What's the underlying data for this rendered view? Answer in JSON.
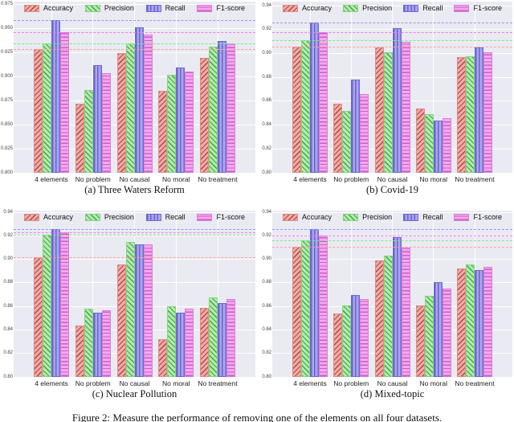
{
  "figure": {
    "caption": "Figure 2: Measure the performance of removing one of the elements on all four datasets.",
    "legend": [
      "Accuracy",
      "Precision",
      "Recall",
      "F1-score"
    ],
    "palette": {
      "accuracy_fill": "#f7a8a2",
      "precision_fill": "#abf0a7",
      "recall_fill": "#aaa6ef",
      "f1_fill": "#f3a9ef",
      "accuracy_dash": "#fc9f9b",
      "precision_dash": "#7ee87e",
      "recall_dash": "#9793f2",
      "f1_dash": "#ee7fe9",
      "plot_background": "#eaeaf2",
      "gridline": "#ffffff"
    }
  },
  "chart_data": [
    {
      "id": "a",
      "type": "bar",
      "title": "(a) Three Waters Reform",
      "categories": [
        "4 elements",
        "No problem",
        "No causal",
        "No moral",
        "No treatment"
      ],
      "series": [
        {
          "name": "Accuracy",
          "values": [
            0.928,
            0.872,
            0.924,
            0.885,
            0.919
          ]
        },
        {
          "name": "Precision",
          "values": [
            0.934,
            0.886,
            0.934,
            0.902,
            0.931
          ]
        },
        {
          "name": "Recall",
          "values": [
            0.958,
            0.912,
            0.951,
            0.909,
            0.937
          ]
        },
        {
          "name": "F1-score",
          "values": [
            0.946,
            0.903,
            0.943,
            0.905,
            0.934
          ]
        }
      ],
      "baselines": {
        "Accuracy": 0.928,
        "Precision": 0.934,
        "Recall": 0.958,
        "F1-score": 0.946
      },
      "ylim": [
        0.8,
        0.9775
      ],
      "yticks": [
        "0.800",
        "0.825",
        "0.850",
        "0.875",
        "0.900",
        "0.925",
        "0.950",
        "0.975"
      ],
      "ytick_values": [
        0.8,
        0.825,
        0.85,
        0.875,
        0.9,
        0.925,
        0.95,
        0.975
      ],
      "grid": true,
      "legend_position": "top"
    },
    {
      "id": "b",
      "type": "bar",
      "title": "(b) Covid-19",
      "categories": [
        "4 elements",
        "No problem",
        "No causal",
        "No moral",
        "No treatment"
      ],
      "series": [
        {
          "name": "Accuracy",
          "values": [
            0.906,
            0.858,
            0.905,
            0.854,
            0.897
          ]
        },
        {
          "name": "Precision",
          "values": [
            0.911,
            0.852,
            0.901,
            0.849,
            0.898
          ]
        },
        {
          "name": "Recall",
          "values": [
            0.926,
            0.878,
            0.921,
            0.844,
            0.905
          ]
        },
        {
          "name": "F1-score",
          "values": [
            0.918,
            0.866,
            0.91,
            0.846,
            0.901
          ]
        }
      ],
      "baselines": {
        "Accuracy": 0.906,
        "Precision": 0.911,
        "Recall": 0.926,
        "F1-score": 0.918
      },
      "ylim": [
        0.8,
        0.9435
      ],
      "yticks": [
        "0.80",
        "0.82",
        "0.84",
        "0.86",
        "0.88",
        "0.90",
        "0.92",
        "0.94"
      ],
      "ytick_values": [
        0.8,
        0.82,
        0.84,
        0.86,
        0.88,
        0.9,
        0.92,
        0.94
      ],
      "grid": true,
      "legend_position": "top"
    },
    {
      "id": "c",
      "type": "bar",
      "title": "(c) Nuclear Pollution",
      "categories": [
        "4 elements",
        "No problem",
        "No causal",
        "No moral",
        "No treatment"
      ],
      "series": [
        {
          "name": "Accuracy",
          "values": [
            0.902,
            0.844,
            0.896,
            0.832,
            0.859
          ]
        },
        {
          "name": "Precision",
          "values": [
            0.921,
            0.858,
            0.915,
            0.86,
            0.868
          ]
        },
        {
          "name": "Recall",
          "values": [
            0.926,
            0.855,
            0.913,
            0.855,
            0.863
          ]
        },
        {
          "name": "F1-score",
          "values": [
            0.923,
            0.857,
            0.913,
            0.858,
            0.866
          ]
        }
      ],
      "baselines": {
        "Accuracy": 0.902,
        "Precision": 0.921,
        "Recall": 0.926,
        "F1-score": 0.923
      },
      "ylim": [
        0.8,
        0.9415
      ],
      "yticks": [
        "0.80",
        "0.82",
        "0.84",
        "0.86",
        "0.88",
        "0.90",
        "0.92",
        "0.94"
      ],
      "ytick_values": [
        0.8,
        0.82,
        0.84,
        0.86,
        0.88,
        0.9,
        0.92,
        0.94
      ],
      "grid": true,
      "legend_position": "top"
    },
    {
      "id": "d",
      "type": "bar",
      "title": "(d) Mixed-topic",
      "categories": [
        "4 elements",
        "No problem",
        "No causal",
        "No moral",
        "No treatment"
      ],
      "series": [
        {
          "name": "Accuracy",
          "values": [
            0.911,
            0.854,
            0.899,
            0.861,
            0.892
          ]
        },
        {
          "name": "Precision",
          "values": [
            0.916,
            0.861,
            0.903,
            0.869,
            0.896
          ]
        },
        {
          "name": "Recall",
          "values": [
            0.926,
            0.87,
            0.919,
            0.881,
            0.891
          ]
        },
        {
          "name": "F1-score",
          "values": [
            0.92,
            0.866,
            0.91,
            0.875,
            0.894
          ]
        }
      ],
      "baselines": {
        "Accuracy": 0.911,
        "Precision": 0.916,
        "Recall": 0.926,
        "F1-score": 0.92
      },
      "ylim": [
        0.8,
        0.9415
      ],
      "yticks": [
        "0.80",
        "0.82",
        "0.84",
        "0.86",
        "0.88",
        "0.90",
        "0.92",
        "0.94"
      ],
      "ytick_values": [
        0.8,
        0.82,
        0.84,
        0.86,
        0.88,
        0.9,
        0.92,
        0.94
      ],
      "grid": true,
      "legend_position": "top"
    }
  ]
}
